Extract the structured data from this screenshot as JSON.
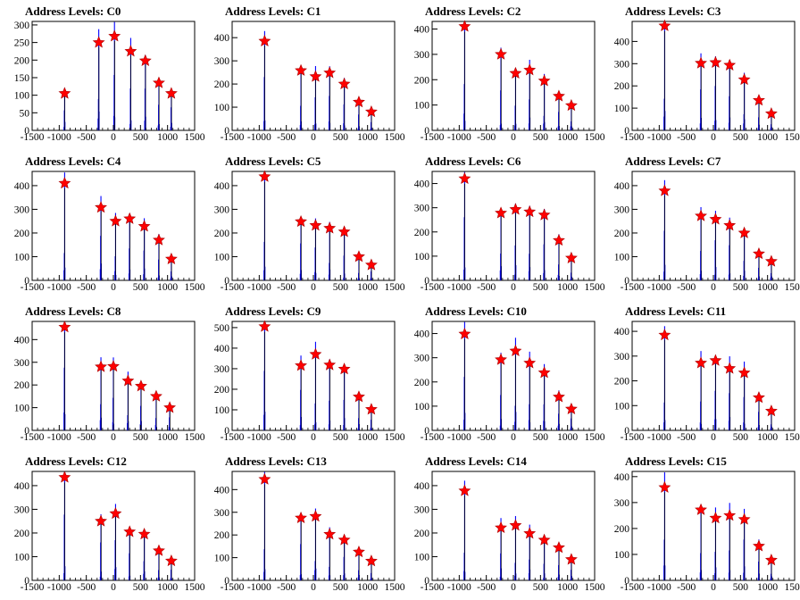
{
  "style": {
    "hist_color": "#0000ff",
    "marker_color": "#ff0000",
    "marker_stroke": "#aa0000",
    "axis_color": "#000000"
  },
  "chart_data": [
    {
      "type": "bar",
      "title": "Address Levels: C0",
      "xlim": [
        -1500,
        1500
      ],
      "xticks": [
        -1500,
        -1000,
        -500,
        0,
        500,
        1000,
        1500
      ],
      "ylim": [
        0,
        310
      ],
      "yticks": [
        0,
        50,
        100,
        150,
        200,
        250,
        300
      ],
      "peaks": [
        {
          "x": -900,
          "y": 105
        },
        {
          "x": -270,
          "y": 250
        },
        {
          "x": 20,
          "y": 268
        },
        {
          "x": 320,
          "y": 225
        },
        {
          "x": 590,
          "y": 198
        },
        {
          "x": 840,
          "y": 135
        },
        {
          "x": 1070,
          "y": 105
        }
      ]
    },
    {
      "type": "bar",
      "title": "Address Levels: C1",
      "xlim": [
        -1500,
        1500
      ],
      "xticks": [
        -1500,
        -1000,
        -500,
        0,
        500,
        1000,
        1500
      ],
      "ylim": [
        0,
        470
      ],
      "yticks": [
        0,
        100,
        200,
        300,
        400
      ],
      "peaks": [
        {
          "x": -900,
          "y": 385
        },
        {
          "x": -230,
          "y": 258
        },
        {
          "x": 40,
          "y": 232
        },
        {
          "x": 300,
          "y": 248
        },
        {
          "x": 570,
          "y": 200
        },
        {
          "x": 840,
          "y": 122
        },
        {
          "x": 1070,
          "y": 80
        }
      ]
    },
    {
      "type": "bar",
      "title": "Address Levels: C2",
      "xlim": [
        -1500,
        1500
      ],
      "xticks": [
        -1500,
        -1000,
        -500,
        0,
        500,
        1000,
        1500
      ],
      "ylim": [
        0,
        430
      ],
      "yticks": [
        0,
        100,
        200,
        300,
        400
      ],
      "peaks": [
        {
          "x": -900,
          "y": 410
        },
        {
          "x": -230,
          "y": 300
        },
        {
          "x": 40,
          "y": 225
        },
        {
          "x": 300,
          "y": 238
        },
        {
          "x": 570,
          "y": 195
        },
        {
          "x": 840,
          "y": 135
        },
        {
          "x": 1070,
          "y": 98
        }
      ]
    },
    {
      "type": "bar",
      "title": "Address Levels: C3",
      "xlim": [
        -1500,
        1500
      ],
      "xticks": [
        -1500,
        -1000,
        -500,
        0,
        500,
        1000,
        1500
      ],
      "ylim": [
        0,
        490
      ],
      "yticks": [
        0,
        100,
        200,
        300,
        400
      ],
      "peaks": [
        {
          "x": -900,
          "y": 470
        },
        {
          "x": -230,
          "y": 302
        },
        {
          "x": 40,
          "y": 305
        },
        {
          "x": 300,
          "y": 293
        },
        {
          "x": 570,
          "y": 228
        },
        {
          "x": 840,
          "y": 135
        },
        {
          "x": 1070,
          "y": 75
        }
      ]
    },
    {
      "type": "bar",
      "title": "Address Levels: C4",
      "xlim": [
        -1500,
        1500
      ],
      "xticks": [
        -1500,
        -1000,
        -500,
        0,
        500,
        1000,
        1500
      ],
      "ylim": [
        0,
        460
      ],
      "yticks": [
        0,
        100,
        200,
        300,
        400
      ],
      "peaks": [
        {
          "x": -900,
          "y": 410
        },
        {
          "x": -230,
          "y": 308
        },
        {
          "x": 40,
          "y": 250
        },
        {
          "x": 300,
          "y": 260
        },
        {
          "x": 570,
          "y": 228
        },
        {
          "x": 840,
          "y": 170
        },
        {
          "x": 1070,
          "y": 90
        }
      ]
    },
    {
      "type": "bar",
      "title": "Address Levels: C5",
      "xlim": [
        -1500,
        1500
      ],
      "xticks": [
        -1500,
        -1000,
        -500,
        0,
        500,
        1000,
        1500
      ],
      "ylim": [
        0,
        460
      ],
      "yticks": [
        0,
        100,
        200,
        300,
        400
      ],
      "peaks": [
        {
          "x": -900,
          "y": 438
        },
        {
          "x": -230,
          "y": 248
        },
        {
          "x": 40,
          "y": 232
        },
        {
          "x": 300,
          "y": 220
        },
        {
          "x": 570,
          "y": 205
        },
        {
          "x": 840,
          "y": 100
        },
        {
          "x": 1070,
          "y": 65
        }
      ]
    },
    {
      "type": "bar",
      "title": "Address Levels: C6",
      "xlim": [
        -1500,
        1500
      ],
      "xticks": [
        -1500,
        -1000,
        -500,
        0,
        500,
        1000,
        1500
      ],
      "ylim": [
        0,
        450
      ],
      "yticks": [
        0,
        100,
        200,
        300,
        400
      ],
      "peaks": [
        {
          "x": -900,
          "y": 420
        },
        {
          "x": -230,
          "y": 278
        },
        {
          "x": 40,
          "y": 293
        },
        {
          "x": 300,
          "y": 283
        },
        {
          "x": 570,
          "y": 270
        },
        {
          "x": 840,
          "y": 165
        },
        {
          "x": 1070,
          "y": 92
        }
      ]
    },
    {
      "type": "bar",
      "title": "Address Levels: C7",
      "xlim": [
        -1500,
        1500
      ],
      "xticks": [
        -1500,
        -1000,
        -500,
        0,
        500,
        1000,
        1500
      ],
      "ylim": [
        0,
        460
      ],
      "yticks": [
        0,
        100,
        200,
        300,
        400
      ],
      "peaks": [
        {
          "x": -900,
          "y": 378
        },
        {
          "x": -230,
          "y": 272
        },
        {
          "x": 40,
          "y": 258
        },
        {
          "x": 300,
          "y": 232
        },
        {
          "x": 570,
          "y": 200
        },
        {
          "x": 840,
          "y": 112
        },
        {
          "x": 1070,
          "y": 80
        }
      ]
    },
    {
      "type": "bar",
      "title": "Address Levels: C8",
      "xlim": [
        -1500,
        1500
      ],
      "xticks": [
        -1500,
        -1000,
        -500,
        0,
        500,
        1000,
        1500
      ],
      "ylim": [
        0,
        480
      ],
      "yticks": [
        0,
        100,
        200,
        300,
        400
      ],
      "peaks": [
        {
          "x": -900,
          "y": 455
        },
        {
          "x": -230,
          "y": 280
        },
        {
          "x": 0,
          "y": 282
        },
        {
          "x": 270,
          "y": 218
        },
        {
          "x": 510,
          "y": 195
        },
        {
          "x": 790,
          "y": 150
        },
        {
          "x": 1040,
          "y": 100
        }
      ]
    },
    {
      "type": "bar",
      "title": "Address Levels: C9",
      "xlim": [
        -1500,
        1500
      ],
      "xticks": [
        -1500,
        -1000,
        -500,
        0,
        500,
        1000,
        1500
      ],
      "ylim": [
        0,
        530
      ],
      "yticks": [
        0,
        100,
        200,
        300,
        400,
        500
      ],
      "peaks": [
        {
          "x": -900,
          "y": 505
        },
        {
          "x": -230,
          "y": 315
        },
        {
          "x": 40,
          "y": 370
        },
        {
          "x": 300,
          "y": 318
        },
        {
          "x": 570,
          "y": 298
        },
        {
          "x": 840,
          "y": 163
        },
        {
          "x": 1070,
          "y": 102
        }
      ]
    },
    {
      "type": "bar",
      "title": "Address Levels: C10",
      "xlim": [
        -1500,
        1500
      ],
      "xticks": [
        -1500,
        -1000,
        -500,
        0,
        500,
        1000,
        1500
      ],
      "ylim": [
        0,
        450
      ],
      "yticks": [
        0,
        100,
        200,
        300,
        400
      ],
      "peaks": [
        {
          "x": -900,
          "y": 398
        },
        {
          "x": -230,
          "y": 292
        },
        {
          "x": 40,
          "y": 328
        },
        {
          "x": 300,
          "y": 278
        },
        {
          "x": 570,
          "y": 238
        },
        {
          "x": 840,
          "y": 138
        },
        {
          "x": 1070,
          "y": 88
        }
      ]
    },
    {
      "type": "bar",
      "title": "Address Levels: C11",
      "xlim": [
        -1500,
        1500
      ],
      "xticks": [
        -1500,
        -1000,
        -500,
        0,
        500,
        1000,
        1500
      ],
      "ylim": [
        0,
        440
      ],
      "yticks": [
        0,
        100,
        200,
        300,
        400
      ],
      "peaks": [
        {
          "x": -900,
          "y": 385
        },
        {
          "x": -230,
          "y": 272
        },
        {
          "x": 40,
          "y": 282
        },
        {
          "x": 300,
          "y": 250
        },
        {
          "x": 570,
          "y": 232
        },
        {
          "x": 840,
          "y": 132
        },
        {
          "x": 1070,
          "y": 78
        }
      ]
    },
    {
      "type": "bar",
      "title": "Address Levels: C12",
      "xlim": [
        -1500,
        1500
      ],
      "xticks": [
        -1500,
        -1000,
        -500,
        0,
        500,
        1000,
        1500
      ],
      "ylim": [
        0,
        460
      ],
      "yticks": [
        0,
        100,
        200,
        300,
        400
      ],
      "peaks": [
        {
          "x": -900,
          "y": 435
        },
        {
          "x": -230,
          "y": 250
        },
        {
          "x": 40,
          "y": 282
        },
        {
          "x": 300,
          "y": 205
        },
        {
          "x": 570,
          "y": 195
        },
        {
          "x": 840,
          "y": 125
        },
        {
          "x": 1070,
          "y": 82
        }
      ]
    },
    {
      "type": "bar",
      "title": "Address Levels: C13",
      "xlim": [
        -1500,
        1500
      ],
      "xticks": [
        -1500,
        -1000,
        -500,
        0,
        500,
        1000,
        1500
      ],
      "ylim": [
        0,
        480
      ],
      "yticks": [
        0,
        100,
        200,
        300,
        400
      ],
      "peaks": [
        {
          "x": -900,
          "y": 445
        },
        {
          "x": -230,
          "y": 275
        },
        {
          "x": 40,
          "y": 282
        },
        {
          "x": 300,
          "y": 203
        },
        {
          "x": 570,
          "y": 178
        },
        {
          "x": 840,
          "y": 125
        },
        {
          "x": 1070,
          "y": 85
        }
      ]
    },
    {
      "type": "bar",
      "title": "Address Levels: C14",
      "xlim": [
        -1500,
        1500
      ],
      "xticks": [
        -1500,
        -1000,
        -500,
        0,
        500,
        1000,
        1500
      ],
      "ylim": [
        0,
        460
      ],
      "yticks": [
        0,
        100,
        200,
        300,
        400
      ],
      "peaks": [
        {
          "x": -900,
          "y": 378
        },
        {
          "x": -230,
          "y": 222
        },
        {
          "x": 40,
          "y": 232
        },
        {
          "x": 300,
          "y": 198
        },
        {
          "x": 570,
          "y": 170
        },
        {
          "x": 840,
          "y": 138
        },
        {
          "x": 1070,
          "y": 88
        }
      ]
    },
    {
      "type": "bar",
      "title": "Address Levels: C15",
      "xlim": [
        -1500,
        1500
      ],
      "xticks": [
        -1500,
        -1000,
        -500,
        0,
        500,
        1000,
        1500
      ],
      "ylim": [
        0,
        420
      ],
      "yticks": [
        0,
        100,
        200,
        300,
        400
      ],
      "peaks": [
        {
          "x": -900,
          "y": 358
        },
        {
          "x": -230,
          "y": 272
        },
        {
          "x": 40,
          "y": 240
        },
        {
          "x": 300,
          "y": 250
        },
        {
          "x": 570,
          "y": 235
        },
        {
          "x": 840,
          "y": 132
        },
        {
          "x": 1070,
          "y": 78
        }
      ]
    }
  ]
}
